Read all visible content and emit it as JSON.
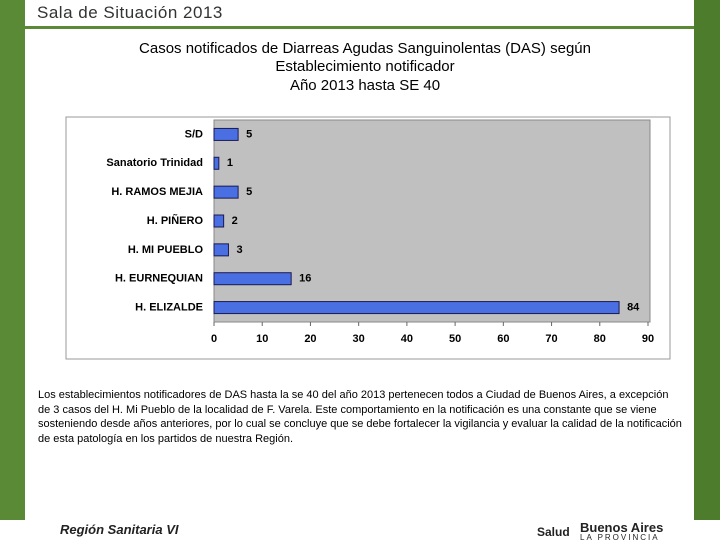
{
  "header": {
    "title": "Sala de Situación 2013"
  },
  "chart_data": {
    "type": "bar",
    "orientation": "horizontal",
    "title": "Casos notificados de Diarreas Agudas Sanguinolentas (DAS) según Establecimiento notificador",
    "subtitle": "Año 2013 hasta SE 40",
    "categories": [
      "S/D",
      "Sanatorio Trinidad",
      "H. RAMOS MEJIA",
      "H. PIÑERO",
      "H. MI PUEBLO",
      "H. EURNEQUIAN",
      "H. ELIZALDE"
    ],
    "values": [
      5,
      1,
      5,
      2,
      3,
      16,
      84
    ],
    "color": "#4a6fe3",
    "xlim": [
      0,
      90
    ],
    "xticks": [
      0,
      10,
      20,
      30,
      40,
      50,
      60,
      70,
      80,
      90
    ],
    "grid": false
  },
  "paragraph": "Los establecimientos notificadores de DAS hasta la se 40 del año 2013  pertenecen  todos a Ciudad de Buenos Aires, a excepción de  3 casos del H. Mi Pueblo de la localidad de F. Varela.  Este comportamiento en la notificación es una constante que se viene sosteniendo desde  años anteriores,  por  lo cual se concluye que  se debe  fortalecer  la vigilancia y evaluar  la calidad de  la notificación de esta patología en los partidos de nuestra Región.",
  "footer": {
    "region": "Región Sanitaria VI",
    "ministry": "Salud",
    "province": "Buenos Aires",
    "province_sub": "LA PROVINCIA"
  }
}
